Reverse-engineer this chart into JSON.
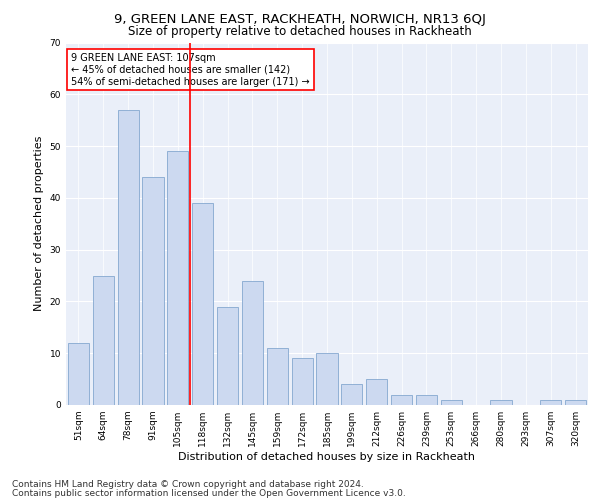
{
  "title": "9, GREEN LANE EAST, RACKHEATH, NORWICH, NR13 6QJ",
  "subtitle": "Size of property relative to detached houses in Rackheath",
  "xlabel": "Distribution of detached houses by size in Rackheath",
  "ylabel": "Number of detached properties",
  "categories": [
    "51sqm",
    "64sqm",
    "78sqm",
    "91sqm",
    "105sqm",
    "118sqm",
    "132sqm",
    "145sqm",
    "159sqm",
    "172sqm",
    "185sqm",
    "199sqm",
    "212sqm",
    "226sqm",
    "239sqm",
    "253sqm",
    "266sqm",
    "280sqm",
    "293sqm",
    "307sqm",
    "320sqm"
  ],
  "values": [
    12,
    25,
    57,
    44,
    49,
    39,
    19,
    24,
    11,
    9,
    10,
    4,
    5,
    2,
    2,
    1,
    0,
    1,
    0,
    1,
    1
  ],
  "bar_color": "#ccd9f0",
  "bar_edge_color": "#85a8d0",
  "reference_line_index": 4,
  "annotation_text": "9 GREEN LANE EAST: 107sqm\n← 45% of detached houses are smaller (142)\n54% of semi-detached houses are larger (171) →",
  "annotation_box_color": "white",
  "annotation_box_edge_color": "red",
  "ylim": [
    0,
    70
  ],
  "yticks": [
    0,
    10,
    20,
    30,
    40,
    50,
    60,
    70
  ],
  "footer_line1": "Contains HM Land Registry data © Crown copyright and database right 2024.",
  "footer_line2": "Contains public sector information licensed under the Open Government Licence v3.0.",
  "bg_color": "#eaeff9",
  "fig_bg_color": "#ffffff",
  "title_fontsize": 9.5,
  "subtitle_fontsize": 8.5,
  "tick_fontsize": 6.5,
  "ylabel_fontsize": 8,
  "xlabel_fontsize": 8,
  "annotation_fontsize": 7,
  "footer_fontsize": 6.5
}
